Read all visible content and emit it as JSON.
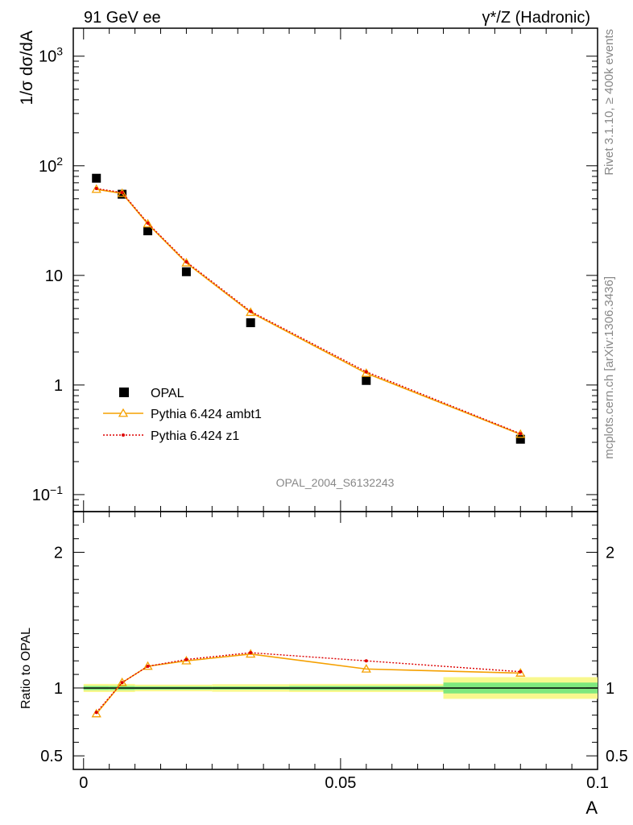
{
  "header": {
    "left": "91 GeV ee",
    "right": "γ*/Z (Hadronic)"
  },
  "side_text": {
    "version": "Rivet 3.1.10, ≥ 400k events",
    "source": "mcplots.cern.ch [arXiv:1306.3436]"
  },
  "analysis_label": "OPAL_2004_S6132243",
  "chart_data": [
    {
      "type": "scatter",
      "panel": "main",
      "ylabel": "1/σ dσ/dA",
      "yscale": "log",
      "ylim": [
        0.07,
        1800
      ],
      "xlim": [
        -0.002,
        0.1
      ],
      "yticks": [
        {
          "value": 0.1,
          "base": "10",
          "exp": "−1"
        },
        {
          "value": 1,
          "base": "1",
          "exp": ""
        },
        {
          "value": 10,
          "base": "10",
          "exp": ""
        },
        {
          "value": 100,
          "base": "10",
          "exp": "2"
        },
        {
          "value": 1000,
          "base": "10",
          "exp": "3"
        }
      ],
      "legend_position": "lower-left",
      "series": [
        {
          "name": "OPAL",
          "color": "#000000",
          "marker": "square",
          "x": [
            0.0025,
            0.0075,
            0.0125,
            0.02,
            0.0325,
            0.055,
            0.085
          ],
          "y": [
            77,
            55,
            25.5,
            10.8,
            3.7,
            1.1,
            0.32
          ]
        },
        {
          "name": "Pythia 6.424 ambt1",
          "color": "#f5a000",
          "marker": "triangle",
          "x": [
            0.0025,
            0.0075,
            0.0125,
            0.02,
            0.0325,
            0.055,
            0.085
          ],
          "y": [
            61,
            56,
            29.5,
            13,
            4.6,
            1.28,
            0.355
          ]
        },
        {
          "name": "Pythia 6.424 z1",
          "color": "#dd0000",
          "marker": "dot",
          "x": [
            0.0025,
            0.0075,
            0.0125,
            0.02,
            0.0325,
            0.055,
            0.085
          ],
          "y": [
            62,
            57,
            30,
            13.3,
            4.7,
            1.32,
            0.36
          ]
        }
      ]
    },
    {
      "type": "line",
      "panel": "ratio",
      "ylabel": "Ratio to OPAL",
      "xlabel": "A",
      "ylim": [
        0.4,
        2.3
      ],
      "xlim": [
        -0.002,
        0.1
      ],
      "yticks": [
        0.5,
        1,
        2
      ],
      "xticks": [
        {
          "value": 0,
          "label": "0"
        },
        {
          "value": 0.05,
          "label": "0.05"
        },
        {
          "value": 0.1,
          "label": "0.1"
        }
      ],
      "reference": {
        "edges": [
          0,
          0.005,
          0.01,
          0.015,
          0.025,
          0.04,
          0.07,
          0.1
        ],
        "inner_band": [
          0.015,
          0.015,
          0.012,
          0.012,
          0.012,
          0.015,
          0.04
        ],
        "outer_band": [
          0.03,
          0.03,
          0.025,
          0.025,
          0.028,
          0.03,
          0.08
        ],
        "inner_color": "#7ee87e",
        "outer_color": "#f8f88e"
      },
      "series": [
        {
          "name": "Pythia 6.424 ambt1",
          "color": "#f5a000",
          "x": [
            0.0025,
            0.0075,
            0.0125,
            0.02,
            0.0325,
            0.055,
            0.085
          ],
          "y": [
            0.81,
            1.04,
            1.16,
            1.2,
            1.25,
            1.14,
            1.11
          ]
        },
        {
          "name": "Pythia 6.424 z1",
          "color": "#dd0000",
          "x": [
            0.0025,
            0.0075,
            0.0125,
            0.02,
            0.0325,
            0.055,
            0.085
          ],
          "y": [
            0.82,
            1.04,
            1.16,
            1.21,
            1.26,
            1.2,
            1.12
          ]
        }
      ]
    }
  ]
}
